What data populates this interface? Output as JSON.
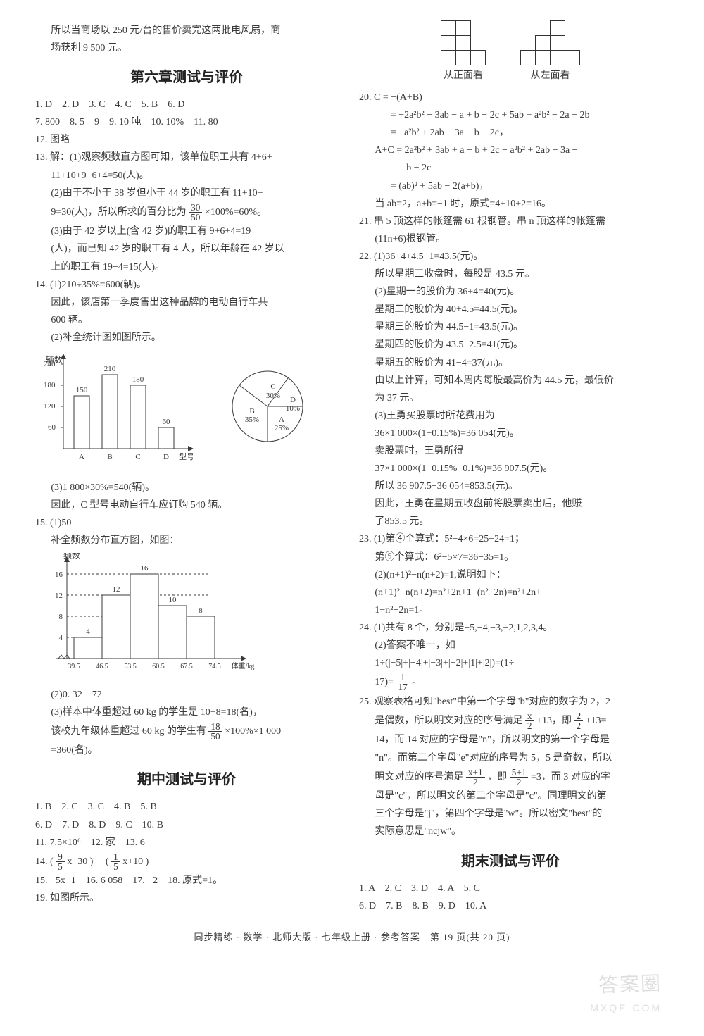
{
  "intro_lines": [
    "所以当商场以 250 元/台的售价卖完这两批电风扇，商",
    "场获利 9 500 元。"
  ],
  "chapter6": {
    "title": "第六章测试与评价",
    "mc_row1": "1. D　2. D　3. C　4. C　5. B　6. D",
    "mc_row2": "7. 800　8. 5　9　9. 10 吨　10. 10%　11. 80",
    "item12": "12. 图略",
    "item13_head": "13. 解：(1)观察频数直方图可知，该单位职工共有 4+6+",
    "item13_l2": "11+10+9+6+4=50(人)。",
    "item13_l3": "(2)由于不小于 38 岁但小于 44 岁的职工有 11+10+",
    "item13_l4_pre": "9=30(人)，所以所求的百分比为",
    "item13_frac_num": "30",
    "item13_frac_den": "50",
    "item13_l4_post": "×100%=60%。",
    "item13_l5": "(3)由于 42 岁以上(含 42 岁)的职工有 9+6+4=19",
    "item13_l6": "(人)，而已知 42 岁的职工有 4 人，所以年龄在 42 岁以",
    "item13_l7": "上的职工有 19−4=15(人)。",
    "item14_l1": "14. (1)210÷35%=600(辆)。",
    "item14_l2": "因此，该店第一季度售出这种品牌的电动自行车共",
    "item14_l3": "600 辆。",
    "item14_l4": "(2)补全统计图如图所示。",
    "barchart1": {
      "type": "bar",
      "ylabel": "辆数",
      "categories": [
        "A",
        "B",
        "C",
        "D"
      ],
      "values": [
        150,
        210,
        180,
        60
      ],
      "value_labels": [
        "150",
        "210",
        "180",
        "60"
      ],
      "xlabel": "型号",
      "yticks": [
        60,
        120,
        180,
        240
      ],
      "bar_color": "#ffffff",
      "bar_border": "#3a3a3a"
    },
    "piechart": {
      "type": "pie",
      "slices": [
        {
          "label": "A",
          "pct": 25
        },
        {
          "label": "B",
          "pct": 35
        },
        {
          "label": "C",
          "pct": 30
        },
        {
          "label": "D",
          "pct": 10
        }
      ],
      "labels": [
        "C 30%",
        "D 10%",
        "A 25%",
        "B 35%"
      ],
      "border": "#3a3a3a"
    },
    "item14_l5": "(3)1 800×30%=540(辆)。",
    "item14_l6": "因此，C 型号电动自行车应订购 540 辆。",
    "item15_l1": "15. (1)50",
    "item15_l2": "补全频数分布直方图，如图：",
    "histogram": {
      "type": "histogram",
      "ylabel": "频数",
      "xlabel": "体重/kg",
      "bin_edges": [
        39.5,
        46.5,
        53.5,
        60.5,
        67.5,
        74.5
      ],
      "values": [
        4,
        12,
        16,
        10,
        8
      ],
      "value_labels": [
        "4",
        "12",
        "16",
        "10",
        "8"
      ],
      "yticks": [
        4,
        8,
        12,
        16
      ],
      "bar_color": "#ffffff",
      "bar_border": "#3a3a3a",
      "grid_dash": true
    },
    "item15_l3": "(2)0. 32　72",
    "item15_l4": "(3)样本中体重超过 60 kg 的学生是 10+8=18(名)，",
    "item15_l5_pre": "该校九年级体重超过 60 kg 的学生有",
    "item15_frac_num": "18",
    "item15_frac_den": "50",
    "item15_l5_post": "×100%×1 000",
    "item15_l6": "=360(名)。"
  },
  "midterm": {
    "title": "期中测试与评价",
    "mc_row1": "1. B　2. C　3. C　4. B　5. B",
    "mc_row2": "6. D　7. D　8. D　9. C　10. B",
    "item11": "11. 7.5×10⁶　12. 家　13. 6",
    "item14_pre": "14. ",
    "item14_frac1_num": "9",
    "item14_frac1_den": "5",
    "item14_mid1": "x−30",
    "item14_frac2_num": "1",
    "item14_frac2_den": "5",
    "item14_mid2": "x+10",
    "item15": "15. −5x−1　16. 6 058　17. −2　18. 原式=1。",
    "item19": "19. 如图所示。",
    "views": {
      "front": {
        "label": "从正面看",
        "grid": [
          [
            1,
            1,
            0
          ],
          [
            1,
            1,
            0
          ],
          [
            1,
            1,
            1
          ]
        ]
      },
      "left": {
        "label": "从左面看",
        "grid": [
          [
            0,
            0,
            1,
            0
          ],
          [
            0,
            1,
            1,
            0
          ],
          [
            1,
            1,
            1,
            1
          ]
        ]
      }
    },
    "item20_l1": "20. C = −(A+B)",
    "item20_l2": "= −2a²b² − 3ab − a + b − 2c + 5ab + a²b² − 2a − 2b",
    "item20_l3": "= −a²b² + 2ab − 3a − b − 2c，",
    "item20_l4": "A+C = 2a²b² + 3ab + a − b + 2c − a²b² + 2ab − 3a −",
    "item20_l5": "b − 2c",
    "item20_l6": "= (ab)² + 5ab − 2(a+b)，",
    "item20_l7": "当 ab=2，a+b=−1 时，原式=4+10+2=16。",
    "item21_l1": "21. 串 5 顶这样的帐篷需 61 根钢管。串 n 顶这样的帐篷需",
    "item21_l2": "(11n+6)根钢管。",
    "item22_l1": "22. (1)36+4+4.5−1=43.5(元)。",
    "item22_l2": "所以星期三收盘时，每股是 43.5 元。",
    "item22_l3": "(2)星期一的股价为 36+4=40(元)。",
    "item22_l4": "星期二的股价为 40+4.5=44.5(元)。",
    "item22_l5": "星期三的股价为 44.5−1=43.5(元)。",
    "item22_l6": "星期四的股价为 43.5−2.5=41(元)。",
    "item22_l7": "星期五的股价为 41−4=37(元)。",
    "item22_l8": "由以上计算，可知本周内每股最高价为 44.5 元，最低价",
    "item22_l9": "为 37 元。",
    "item22_l10": "(3)王勇买股票时所花费用为",
    "item22_l11": "36×1 000×(1+0.15%)=36 054(元)。",
    "item22_l12": "卖股票时，王勇所得",
    "item22_l13": "37×1 000×(1−0.15%−0.1%)=36 907.5(元)。",
    "item22_l14": "所以 36 907.5−36 054=853.5(元)。",
    "item22_l15": "因此，王勇在星期五收盘前将股票卖出后，他赚",
    "item22_l16": "了853.5 元。",
    "item23_l1": "23. (1)第④个算式：5²−4×6=25−24=1；",
    "item23_l2": "第⑤个算式：6²−5×7=36−35=1。",
    "item23_l3": "(2)(n+1)²−n(n+2)=1,说明如下：",
    "item23_l4": "(n+1)²−n(n+2)=n²+2n+1−(n²+2n)=n²+2n+",
    "item23_l5": "1−n²−2n=1。",
    "item24_l1": "24. (1)共有 8 个，分别是−5,−4,−3,−2,1,2,3,4。",
    "item24_l2": "(2)答案不唯一，如",
    "item24_l3": "1÷(|−5|+|−4|+|−3|+|−2|+|1|+|2|)=(1÷",
    "item24_l4_pre": "17)=",
    "item24_frac_num": "1",
    "item24_frac_den": "17",
    "item24_l4_post": "。",
    "item25_l1": "25. 观察表格可知\"best\"中第一个字母\"b\"对应的数字为 2，2",
    "item25_l2_a": "是偶数，所以明文对应的序号满足",
    "item25_frac1_num": "x",
    "item25_frac1_den": "2",
    "item25_l2_b": "+13，即",
    "item25_frac2_num": "2",
    "item25_frac2_den": "2",
    "item25_l2_c": "+13=",
    "item25_l3": "14，而 14 对应的字母是\"n\"，所以明文的第一个字母是",
    "item25_l4": "\"n\"。而第二个字母\"e\"对应的序号为 5，5 是奇数，所以",
    "item25_l5_a": "明文对应的序号满足",
    "item25_frac3_num": "x+1",
    "item25_frac3_den": "2",
    "item25_l5_b": "，即",
    "item25_frac4_num": "5+1",
    "item25_frac4_den": "2",
    "item25_l5_c": "=3，而 3 对应的字",
    "item25_l6": "母是\"c\"，所以明文的第二个字母是\"c\"。同理明文的第",
    "item25_l7": "三个字母是\"j\"，第四个字母是\"w\"。所以密文\"best\"的",
    "item25_l8": "实际意思是\"ncjw\"。"
  },
  "final": {
    "title": "期末测试与评价",
    "mc_row1": "1. A　2. C　3. D　4. A　5. C",
    "mc_row2": "6. D　7. B　8. B　9. D　10. A"
  },
  "footer": "同步精练 · 数学 · 北师大版 · 七年级上册 · 参考答案　第 19 页(共 20 页)",
  "watermark": "答案圈",
  "watermark_sub": "MXQE.COM"
}
